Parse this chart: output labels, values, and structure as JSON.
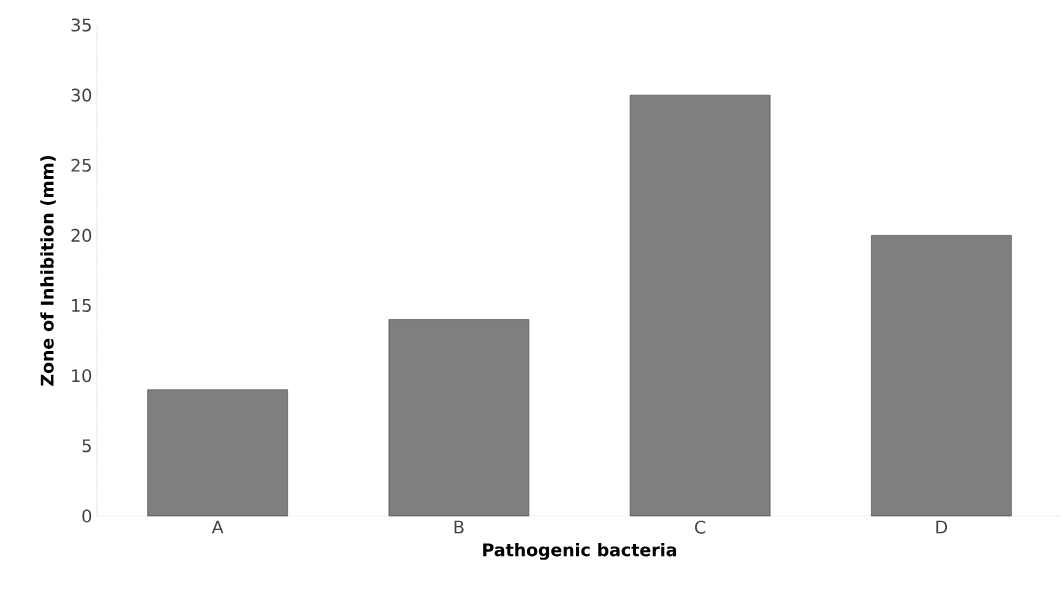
{
  "chart_data": {
    "type": "bar",
    "xlabel": "Pathogenic bacteria",
    "ylabel": "Zone of Inhibition (mm)",
    "categories": [
      "A",
      "B",
      "C",
      "D"
    ],
    "values": [
      9,
      14,
      30,
      20
    ],
    "color": "#7f7f7f",
    "ylim": [
      0,
      35
    ],
    "yticks": [
      0,
      5,
      10,
      15,
      20,
      25,
      30,
      35
    ],
    "grid": false
  }
}
